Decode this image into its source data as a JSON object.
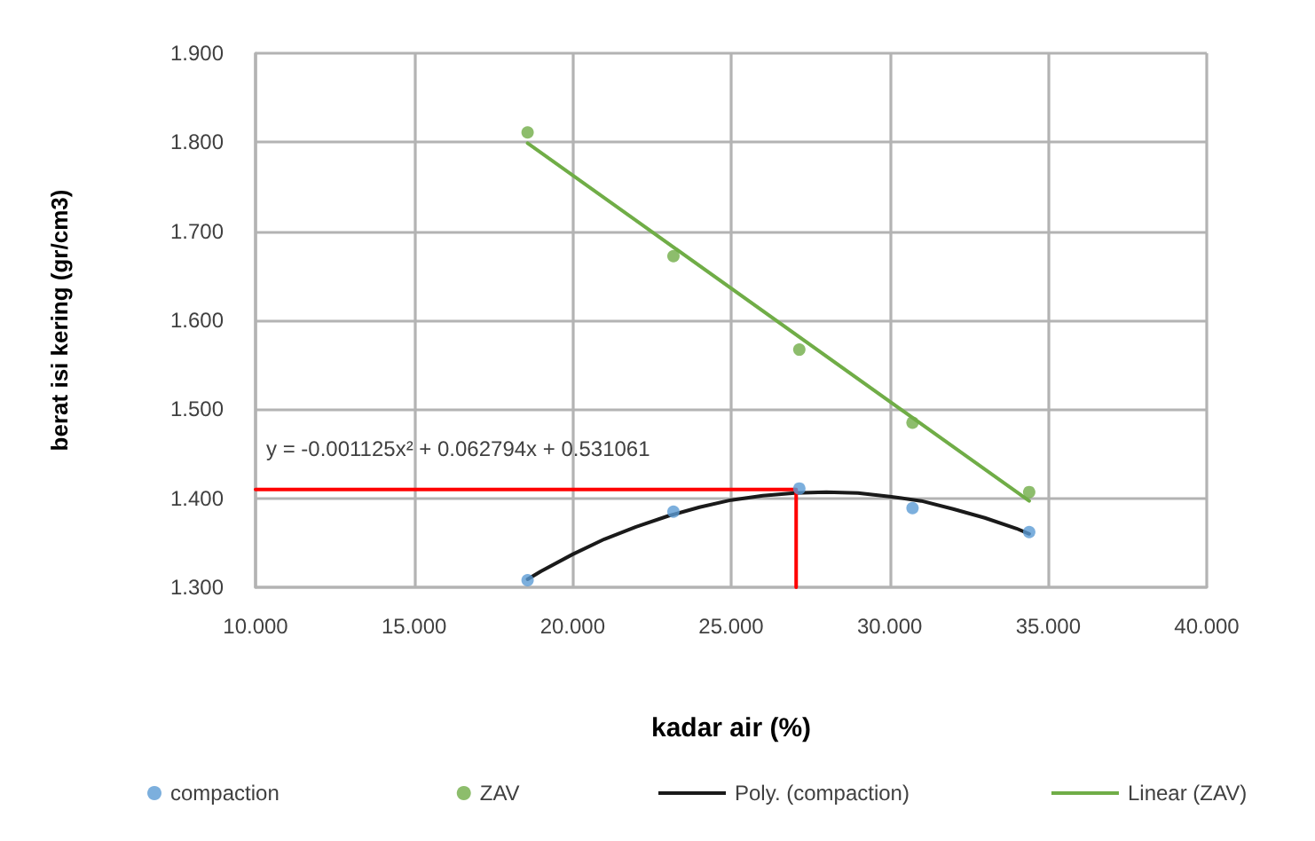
{
  "chart_data": {
    "type": "scatter",
    "xlabel": "kadar air (%)",
    "ylabel": "berat isi kering (gr/cm3)",
    "annotations": [
      "y = -0.001125x² + 0.062794x + 0.531061"
    ],
    "series": [
      {
        "name": "compaction",
        "color": "#5b9bd5",
        "x": [
          18.58,
          23.18,
          27.15,
          30.72,
          34.4
        ],
        "values": [
          1.308,
          1.385,
          1.411,
          1.389,
          1.362
        ]
      },
      {
        "name": "ZAV",
        "color": "#70ad47",
        "x": [
          18.58,
          23.18,
          27.15,
          30.72,
          34.4
        ],
        "values": [
          1.811,
          1.672,
          1.567,
          1.485,
          1.407
        ]
      },
      {
        "name": "Poly. (compaction)",
        "type": "line",
        "marker": "none",
        "color": "#1a1a1a",
        "x": [
          18.58,
          19,
          20,
          21,
          22,
          23,
          24,
          25,
          26,
          27,
          28,
          29,
          30,
          31,
          32,
          33,
          34,
          34.4
        ],
        "values": [
          1.309,
          1.318,
          1.337,
          1.354,
          1.368,
          1.38,
          1.39,
          1.398,
          1.403,
          1.406,
          1.407,
          1.406,
          1.402,
          1.397,
          1.388,
          1.378,
          1.366,
          1.36
        ]
      },
      {
        "name": "Linear (ZAV)",
        "type": "line",
        "marker": "none",
        "color": "#70ad47",
        "x": [
          18.58,
          34.4
        ],
        "values": [
          1.799,
          1.397
        ]
      },
      {
        "type": "line",
        "marker": "none",
        "color": "#ff0000",
        "x": [
          10,
          27.05,
          27.05
        ],
        "values": [
          1.41,
          1.41,
          1.3
        ]
      }
    ],
    "xlim": [
      10,
      40
    ],
    "xticks": [
      {
        "value": 10,
        "label": "10.000"
      },
      {
        "value": 15,
        "label": "15.000"
      },
      {
        "value": 20,
        "label": "20.000"
      },
      {
        "value": 25,
        "label": "25.000"
      },
      {
        "value": 30,
        "label": "30.000"
      },
      {
        "value": 35,
        "label": "35.000"
      },
      {
        "value": 40,
        "label": "40.000"
      }
    ],
    "ylim": [
      1.3,
      1.9
    ],
    "yticks": [
      {
        "value": 1.3,
        "label": "1.300"
      },
      {
        "value": 1.4,
        "label": "1.400"
      },
      {
        "value": 1.5,
        "label": "1.500"
      },
      {
        "value": 1.6,
        "label": "1.600"
      },
      {
        "value": 1.7,
        "label": "1.700"
      },
      {
        "value": 1.8,
        "label": "1.800"
      },
      {
        "value": 1.9,
        "label": "1.900"
      }
    ],
    "grid": true,
    "legend": "bottom",
    "marker": "circle",
    "line_style": "solid"
  }
}
